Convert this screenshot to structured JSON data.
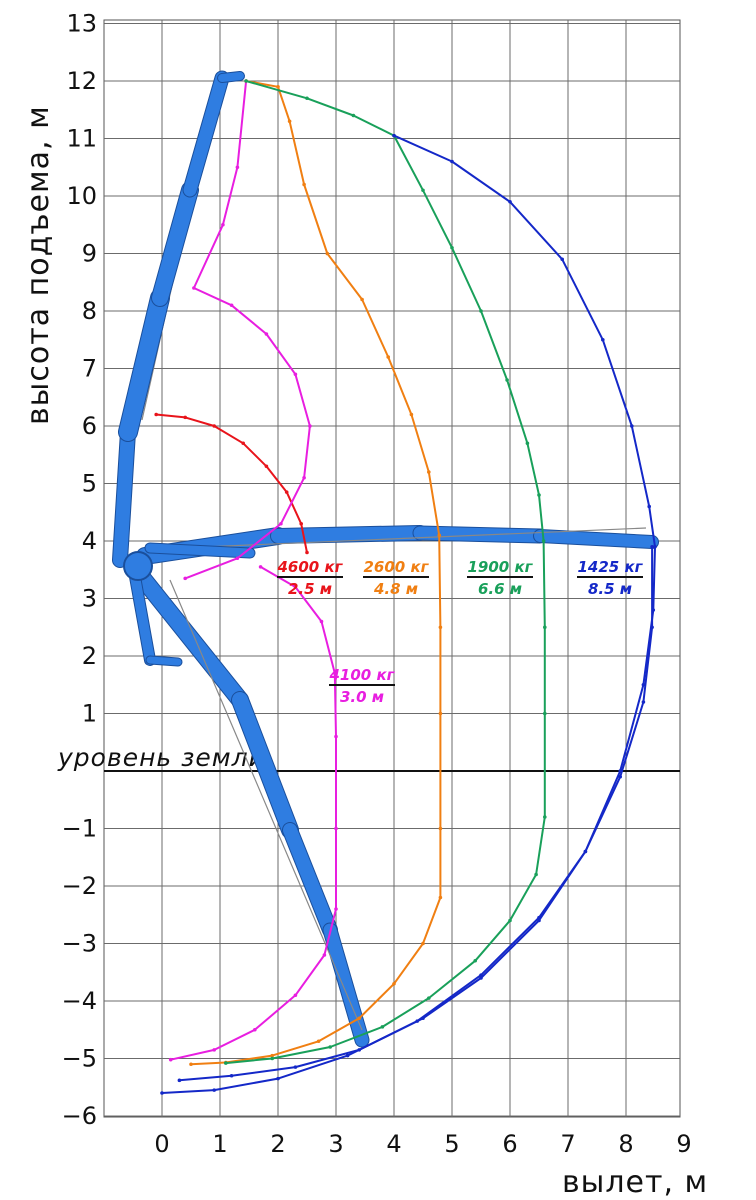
{
  "chart_data": {
    "type": "line",
    "xlabel": "вылет,  м",
    "ylabel": "высота подъема,  м",
    "xlim": [
      -1,
      9
    ],
    "ylim": [
      -6,
      13
    ],
    "xticks": [
      "0",
      "1",
      "2",
      "3",
      "4",
      "5",
      "6",
      "7",
      "8",
      "9"
    ],
    "yticks": [
      "13",
      "12",
      "11",
      "10",
      "9",
      "8",
      "7",
      "6",
      "5",
      "4",
      "3",
      "2",
      "1",
      "−1",
      "−2",
      "−3",
      "−4",
      "−5",
      "−6"
    ],
    "grid": true,
    "ground_level": {
      "y": 0,
      "label": "уровень земли"
    },
    "series": [
      {
        "load": "4600 кг",
        "reach": "2.5 м",
        "color": "#e8141b",
        "points": [
          [
            -0.1,
            6.2
          ],
          [
            0.4,
            6.15
          ],
          [
            0.9,
            6.0
          ],
          [
            1.4,
            5.7
          ],
          [
            1.8,
            5.3
          ],
          [
            2.15,
            4.85
          ],
          [
            2.4,
            4.3
          ],
          [
            2.5,
            3.8
          ]
        ]
      },
      {
        "load": "4100 кг",
        "reach": "3.0 м",
        "color": "#e81ee0",
        "points": [
          [
            1.45,
            12.0
          ],
          [
            1.3,
            10.5
          ],
          [
            1.05,
            9.5
          ],
          [
            0.55,
            8.4
          ],
          [
            1.2,
            8.1
          ],
          [
            1.8,
            7.6
          ],
          [
            2.3,
            6.9
          ],
          [
            2.55,
            6.0
          ],
          [
            2.45,
            5.1
          ],
          [
            2.05,
            4.3
          ],
          [
            1.3,
            3.7
          ],
          [
            0.4,
            3.35
          ],
          null,
          [
            1.7,
            3.55
          ],
          [
            2.3,
            3.2
          ],
          [
            2.75,
            2.6
          ],
          [
            2.98,
            1.7
          ],
          [
            3.0,
            0.6
          ],
          [
            3.0,
            -1.0
          ],
          [
            3.0,
            -2.4
          ],
          [
            2.8,
            -3.2
          ],
          [
            2.3,
            -3.9
          ],
          [
            1.6,
            -4.5
          ],
          [
            0.9,
            -4.85
          ],
          [
            0.15,
            -5.02
          ]
        ]
      },
      {
        "load": "2600 кг",
        "reach": "4.8 м",
        "color": "#f07f12",
        "points": [
          [
            1.45,
            12.0
          ],
          [
            2.0,
            11.9
          ],
          [
            2.2,
            11.3
          ],
          [
            2.45,
            10.2
          ],
          [
            2.85,
            9.0
          ],
          [
            3.45,
            8.2
          ],
          [
            3.9,
            7.2
          ],
          [
            4.3,
            6.2
          ],
          [
            4.6,
            5.2
          ],
          [
            4.78,
            4.1
          ],
          [
            4.8,
            2.5
          ],
          [
            4.8,
            1.0
          ],
          [
            4.8,
            -1.0
          ],
          [
            4.8,
            -2.2
          ],
          [
            4.5,
            -3.0
          ],
          [
            4.0,
            -3.7
          ],
          [
            3.4,
            -4.3
          ],
          [
            2.7,
            -4.7
          ],
          [
            1.9,
            -4.95
          ],
          [
            1.1,
            -5.07
          ],
          [
            0.5,
            -5.1
          ]
        ]
      },
      {
        "load": "1900 кг",
        "reach": "6.6 м",
        "color": "#19a05a",
        "points": [
          [
            1.45,
            12.0
          ],
          [
            2.5,
            11.7
          ],
          [
            3.3,
            11.4
          ],
          [
            4.0,
            11.05
          ],
          [
            4.5,
            10.1
          ],
          [
            5.0,
            9.1
          ],
          [
            5.5,
            8.0
          ],
          [
            5.95,
            6.8
          ],
          [
            6.3,
            5.7
          ],
          [
            6.5,
            4.8
          ],
          [
            6.58,
            4.0
          ],
          [
            6.6,
            2.5
          ],
          [
            6.6,
            1.0
          ],
          [
            6.6,
            -0.8
          ],
          [
            6.45,
            -1.8
          ],
          [
            6.0,
            -2.6
          ],
          [
            5.4,
            -3.3
          ],
          [
            4.6,
            -3.95
          ],
          [
            3.8,
            -4.45
          ],
          [
            2.9,
            -4.8
          ],
          [
            1.9,
            -5.0
          ],
          [
            1.1,
            -5.08
          ]
        ]
      },
      {
        "load": "1425 кг",
        "reach": "8.5 м",
        "color": "#1428c8",
        "points": [
          [
            4.0,
            11.05
          ],
          [
            5.0,
            10.6
          ],
          [
            6.0,
            9.9
          ],
          [
            6.9,
            8.9
          ],
          [
            7.6,
            7.5
          ],
          [
            8.1,
            6.0
          ],
          [
            8.4,
            4.6
          ],
          [
            8.5,
            3.9
          ],
          [
            8.47,
            2.8
          ],
          [
            8.3,
            1.5
          ],
          [
            7.9,
            0.0
          ],
          [
            7.3,
            -1.4
          ],
          [
            6.5,
            -2.6
          ],
          [
            5.5,
            -3.6
          ],
          [
            4.5,
            -4.3
          ],
          [
            3.4,
            -4.85
          ],
          [
            2.3,
            -5.15
          ],
          [
            1.2,
            -5.3
          ],
          [
            0.3,
            -5.38
          ]
        ]
      },
      {
        "load": "1425 кг",
        "reach": "8.5 м",
        "color": "#1428c8",
        "points": [
          [
            8.45,
            3.9
          ],
          [
            8.45,
            2.5
          ],
          [
            8.3,
            1.2
          ],
          [
            7.9,
            -0.1
          ],
          [
            7.3,
            -1.4
          ],
          [
            6.5,
            -2.55
          ],
          [
            5.5,
            -3.55
          ],
          [
            4.4,
            -4.35
          ],
          [
            3.2,
            -4.95
          ],
          [
            2.0,
            -5.35
          ],
          [
            0.9,
            -5.55
          ],
          [
            0.0,
            -5.6
          ]
        ]
      }
    ],
    "labels": [
      {
        "load": "4600 кг",
        "reach": "2.5 м",
        "color": "#e8141b"
      },
      {
        "load": "2600 кг",
        "reach": "4.8 м",
        "color": "#f07f12"
      },
      {
        "load": "1900 кг",
        "reach": "6.6 м",
        "color": "#19a05a"
      },
      {
        "load": "1425 кг",
        "reach": "8.5 м",
        "color": "#1428c8"
      },
      {
        "load": "4100 кг",
        "reach": "3.0 м",
        "color": "#e81ee0"
      }
    ]
  }
}
